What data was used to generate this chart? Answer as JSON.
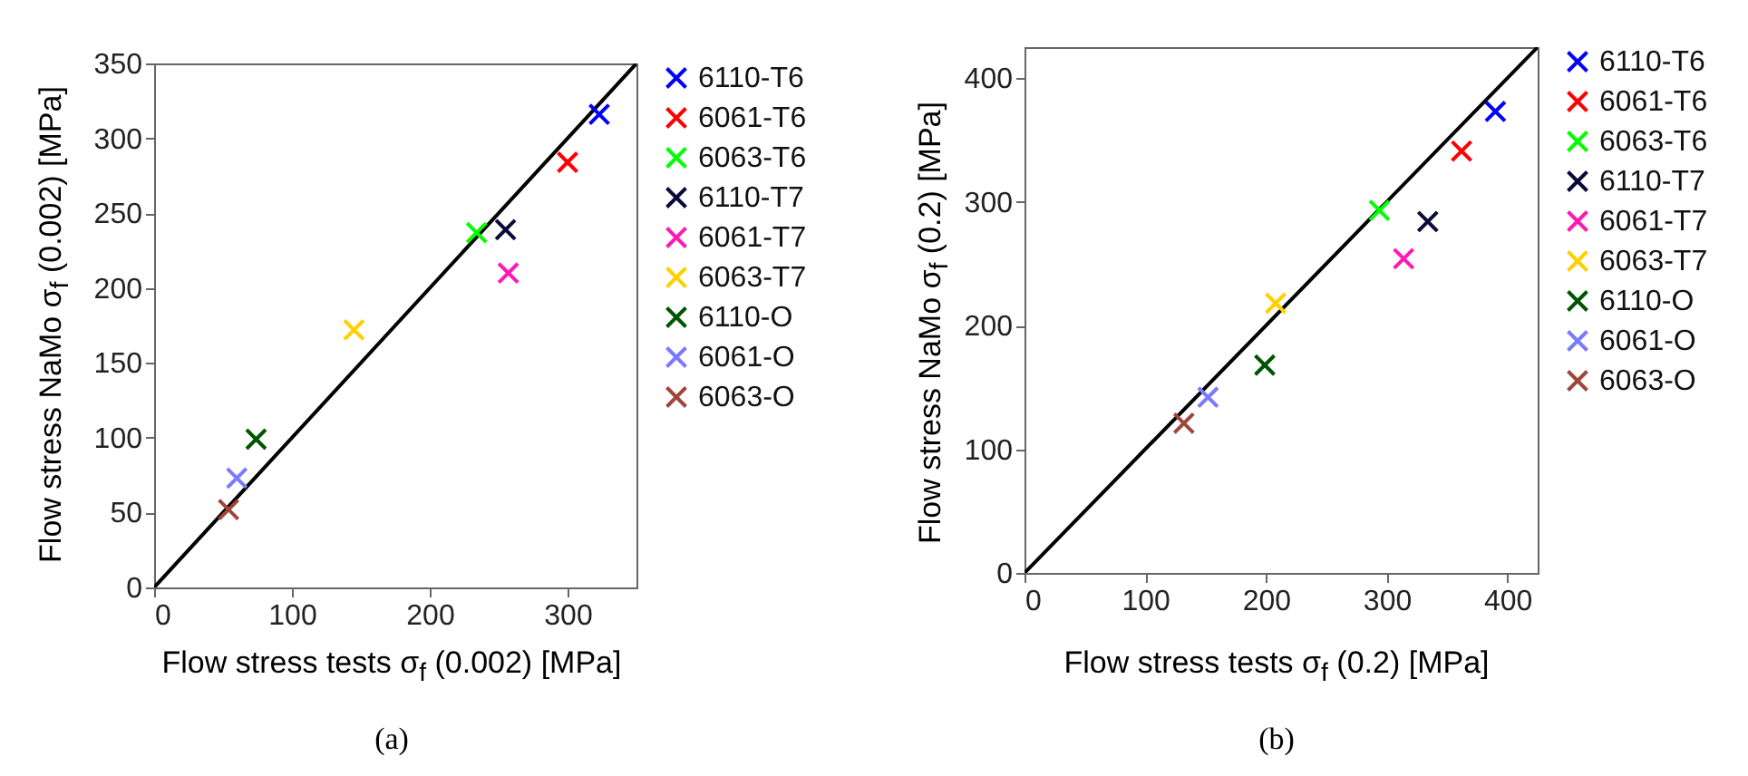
{
  "chart_data": [
    {
      "type": "scatter",
      "marker": "cross",
      "legend": "right",
      "xlabel": "Flow stress tests σ$_{f}$ (0.002) [MPa]",
      "ylabel": "Flow stress NaMo σ$_{f}$ (0.002) [MPa]",
      "xlim": [
        0,
        350
      ],
      "ylim": [
        0,
        350
      ],
      "xticks": [
        0,
        100,
        200,
        300
      ],
      "yticks": [
        0,
        50,
        100,
        150,
        200,
        250,
        300,
        350
      ],
      "annotations": [
        "(a)"
      ],
      "series": [
        {
          "type": "line",
          "marker": "none",
          "color": "#000000",
          "x": [
            0,
            350
          ],
          "values": [
            0,
            350
          ]
        },
        {
          "name": "6110-T6",
          "color": "#0000ff",
          "x": [
            323
          ],
          "values": [
            316
          ]
        },
        {
          "name": "6061-T6",
          "color": "#ff0000",
          "x": [
            300
          ],
          "values": [
            284
          ]
        },
        {
          "name": "6063-T6",
          "color": "#00ff00",
          "x": [
            234
          ],
          "values": [
            237
          ]
        },
        {
          "name": "6110-T7",
          "color": "#0a0a3a",
          "x": [
            255
          ],
          "values": [
            239
          ]
        },
        {
          "name": "6061-T7",
          "color": "#ff1ab3",
          "x": [
            257
          ],
          "values": [
            210
          ]
        },
        {
          "name": "6063-T7",
          "color": "#ffd000",
          "x": [
            145
          ],
          "values": [
            172
          ]
        },
        {
          "name": "6110-O",
          "color": "#005500",
          "x": [
            74
          ],
          "values": [
            99
          ]
        },
        {
          "name": "6061-O",
          "color": "#7a7aff",
          "x": [
            60
          ],
          "values": [
            73
          ]
        },
        {
          "name": "6063-O",
          "color": "#a0453a",
          "x": [
            54
          ],
          "values": [
            52
          ]
        }
      ]
    },
    {
      "type": "scatter",
      "marker": "cross",
      "legend": "right",
      "xlabel": "Flow stress tests σ$_{f}$ (0.2) [MPa]",
      "ylabel": "Flow stress NaMo σ$_{f}$ (0.2) [MPa]",
      "xlim": [
        0,
        425
      ],
      "ylim": [
        0,
        425
      ],
      "xticks": [
        0,
        100,
        200,
        300,
        400
      ],
      "yticks": [
        0,
        100,
        200,
        300,
        400
      ],
      "annotations": [
        "(b)"
      ],
      "series": [
        {
          "type": "line",
          "marker": "none",
          "color": "#000000",
          "x": [
            0,
            425
          ],
          "values": [
            0,
            425
          ]
        },
        {
          "name": "6110-T6",
          "color": "#0000ff",
          "x": [
            390
          ],
          "values": [
            373
          ]
        },
        {
          "name": "6061-T6",
          "color": "#ff0000",
          "x": [
            362
          ],
          "values": [
            341
          ]
        },
        {
          "name": "6063-T6",
          "color": "#00ff00",
          "x": [
            294
          ],
          "values": [
            293
          ]
        },
        {
          "name": "6110-T7",
          "color": "#0a0a3a",
          "x": [
            334
          ],
          "values": [
            284
          ]
        },
        {
          "name": "6061-T7",
          "color": "#ff1ab3",
          "x": [
            314
          ],
          "values": [
            254
          ]
        },
        {
          "name": "6063-T7",
          "color": "#ffd000",
          "x": [
            208
          ],
          "values": [
            218
          ]
        },
        {
          "name": "6110-O",
          "color": "#005500",
          "x": [
            199
          ],
          "values": [
            168
          ]
        },
        {
          "name": "6061-O",
          "color": "#7a7aff",
          "x": [
            152
          ],
          "values": [
            142
          ]
        },
        {
          "name": "6063-O",
          "color": "#a0453a",
          "x": [
            132
          ],
          "values": [
            121
          ]
        }
      ]
    }
  ]
}
